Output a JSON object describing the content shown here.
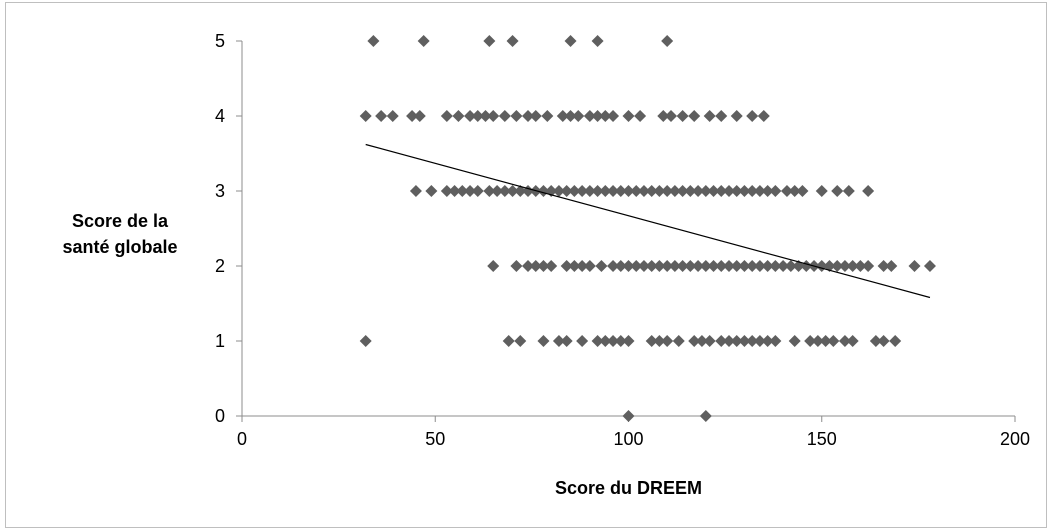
{
  "chart_data": {
    "type": "scatter",
    "title": "",
    "xlabel": "Score du DREEM",
    "ylabel_lines": [
      "Score de la",
      "santé globale"
    ],
    "xlim": [
      0,
      200
    ],
    "ylim": [
      0,
      5
    ],
    "x_ticks": [
      0,
      50,
      100,
      150,
      200
    ],
    "y_ticks": [
      0,
      1,
      2,
      3,
      4,
      5
    ],
    "grid": false,
    "legend": "none",
    "marker_color": "#5f5f5f",
    "trendline_color": "#000000",
    "trendline": {
      "x": [
        32,
        178
      ],
      "y": [
        3.62,
        1.58
      ]
    },
    "series": [
      {
        "points": [
          {
            "x": 34,
            "y": 5
          },
          {
            "x": 47,
            "y": 5
          },
          {
            "x": 64,
            "y": 5
          },
          {
            "x": 70,
            "y": 5
          },
          {
            "x": 85,
            "y": 5
          },
          {
            "x": 92,
            "y": 5
          },
          {
            "x": 110,
            "y": 5
          },
          {
            "x": 32,
            "y": 4
          },
          {
            "x": 36,
            "y": 4
          },
          {
            "x": 39,
            "y": 4
          },
          {
            "x": 44,
            "y": 4
          },
          {
            "x": 46,
            "y": 4
          },
          {
            "x": 53,
            "y": 4
          },
          {
            "x": 56,
            "y": 4
          },
          {
            "x": 59,
            "y": 4
          },
          {
            "x": 61,
            "y": 4
          },
          {
            "x": 63,
            "y": 4
          },
          {
            "x": 65,
            "y": 4
          },
          {
            "x": 68,
            "y": 4
          },
          {
            "x": 71,
            "y": 4
          },
          {
            "x": 74,
            "y": 4
          },
          {
            "x": 76,
            "y": 4
          },
          {
            "x": 79,
            "y": 4
          },
          {
            "x": 83,
            "y": 4
          },
          {
            "x": 85,
            "y": 4
          },
          {
            "x": 87,
            "y": 4
          },
          {
            "x": 90,
            "y": 4
          },
          {
            "x": 92,
            "y": 4
          },
          {
            "x": 94,
            "y": 4
          },
          {
            "x": 96,
            "y": 4
          },
          {
            "x": 100,
            "y": 4
          },
          {
            "x": 103,
            "y": 4
          },
          {
            "x": 109,
            "y": 4
          },
          {
            "x": 111,
            "y": 4
          },
          {
            "x": 114,
            "y": 4
          },
          {
            "x": 117,
            "y": 4
          },
          {
            "x": 121,
            "y": 4
          },
          {
            "x": 124,
            "y": 4
          },
          {
            "x": 128,
            "y": 4
          },
          {
            "x": 132,
            "y": 4
          },
          {
            "x": 135,
            "y": 4
          },
          {
            "x": 45,
            "y": 3
          },
          {
            "x": 49,
            "y": 3
          },
          {
            "x": 53,
            "y": 3
          },
          {
            "x": 55,
            "y": 3
          },
          {
            "x": 57,
            "y": 3
          },
          {
            "x": 59,
            "y": 3
          },
          {
            "x": 61,
            "y": 3
          },
          {
            "x": 64,
            "y": 3
          },
          {
            "x": 66,
            "y": 3
          },
          {
            "x": 68,
            "y": 3
          },
          {
            "x": 70,
            "y": 3
          },
          {
            "x": 72,
            "y": 3
          },
          {
            "x": 74,
            "y": 3
          },
          {
            "x": 76,
            "y": 3
          },
          {
            "x": 78,
            "y": 3
          },
          {
            "x": 80,
            "y": 3
          },
          {
            "x": 82,
            "y": 3
          },
          {
            "x": 84,
            "y": 3
          },
          {
            "x": 86,
            "y": 3
          },
          {
            "x": 88,
            "y": 3
          },
          {
            "x": 90,
            "y": 3
          },
          {
            "x": 92,
            "y": 3
          },
          {
            "x": 94,
            "y": 3
          },
          {
            "x": 96,
            "y": 3
          },
          {
            "x": 98,
            "y": 3
          },
          {
            "x": 100,
            "y": 3
          },
          {
            "x": 102,
            "y": 3
          },
          {
            "x": 104,
            "y": 3
          },
          {
            "x": 106,
            "y": 3
          },
          {
            "x": 108,
            "y": 3
          },
          {
            "x": 110,
            "y": 3
          },
          {
            "x": 112,
            "y": 3
          },
          {
            "x": 114,
            "y": 3
          },
          {
            "x": 116,
            "y": 3
          },
          {
            "x": 118,
            "y": 3
          },
          {
            "x": 120,
            "y": 3
          },
          {
            "x": 122,
            "y": 3
          },
          {
            "x": 124,
            "y": 3
          },
          {
            "x": 126,
            "y": 3
          },
          {
            "x": 128,
            "y": 3
          },
          {
            "x": 130,
            "y": 3
          },
          {
            "x": 132,
            "y": 3
          },
          {
            "x": 134,
            "y": 3
          },
          {
            "x": 136,
            "y": 3
          },
          {
            "x": 138,
            "y": 3
          },
          {
            "x": 141,
            "y": 3
          },
          {
            "x": 143,
            "y": 3
          },
          {
            "x": 145,
            "y": 3
          },
          {
            "x": 150,
            "y": 3
          },
          {
            "x": 154,
            "y": 3
          },
          {
            "x": 157,
            "y": 3
          },
          {
            "x": 162,
            "y": 3
          },
          {
            "x": 65,
            "y": 2
          },
          {
            "x": 71,
            "y": 2
          },
          {
            "x": 74,
            "y": 2
          },
          {
            "x": 76,
            "y": 2
          },
          {
            "x": 78,
            "y": 2
          },
          {
            "x": 80,
            "y": 2
          },
          {
            "x": 84,
            "y": 2
          },
          {
            "x": 86,
            "y": 2
          },
          {
            "x": 88,
            "y": 2
          },
          {
            "x": 90,
            "y": 2
          },
          {
            "x": 93,
            "y": 2
          },
          {
            "x": 96,
            "y": 2
          },
          {
            "x": 98,
            "y": 2
          },
          {
            "x": 100,
            "y": 2
          },
          {
            "x": 102,
            "y": 2
          },
          {
            "x": 104,
            "y": 2
          },
          {
            "x": 106,
            "y": 2
          },
          {
            "x": 108,
            "y": 2
          },
          {
            "x": 110,
            "y": 2
          },
          {
            "x": 112,
            "y": 2
          },
          {
            "x": 114,
            "y": 2
          },
          {
            "x": 116,
            "y": 2
          },
          {
            "x": 118,
            "y": 2
          },
          {
            "x": 120,
            "y": 2
          },
          {
            "x": 122,
            "y": 2
          },
          {
            "x": 124,
            "y": 2
          },
          {
            "x": 126,
            "y": 2
          },
          {
            "x": 128,
            "y": 2
          },
          {
            "x": 130,
            "y": 2
          },
          {
            "x": 132,
            "y": 2
          },
          {
            "x": 134,
            "y": 2
          },
          {
            "x": 136,
            "y": 2
          },
          {
            "x": 138,
            "y": 2
          },
          {
            "x": 140,
            "y": 2
          },
          {
            "x": 142,
            "y": 2
          },
          {
            "x": 144,
            "y": 2
          },
          {
            "x": 146,
            "y": 2
          },
          {
            "x": 148,
            "y": 2
          },
          {
            "x": 150,
            "y": 2
          },
          {
            "x": 152,
            "y": 2
          },
          {
            "x": 154,
            "y": 2
          },
          {
            "x": 156,
            "y": 2
          },
          {
            "x": 158,
            "y": 2
          },
          {
            "x": 160,
            "y": 2
          },
          {
            "x": 162,
            "y": 2
          },
          {
            "x": 166,
            "y": 2
          },
          {
            "x": 168,
            "y": 2
          },
          {
            "x": 174,
            "y": 2
          },
          {
            "x": 178,
            "y": 2
          },
          {
            "x": 32,
            "y": 1
          },
          {
            "x": 69,
            "y": 1
          },
          {
            "x": 72,
            "y": 1
          },
          {
            "x": 78,
            "y": 1
          },
          {
            "x": 82,
            "y": 1
          },
          {
            "x": 84,
            "y": 1
          },
          {
            "x": 88,
            "y": 1
          },
          {
            "x": 92,
            "y": 1
          },
          {
            "x": 94,
            "y": 1
          },
          {
            "x": 96,
            "y": 1
          },
          {
            "x": 98,
            "y": 1
          },
          {
            "x": 100,
            "y": 1
          },
          {
            "x": 106,
            "y": 1
          },
          {
            "x": 108,
            "y": 1
          },
          {
            "x": 110,
            "y": 1
          },
          {
            "x": 113,
            "y": 1
          },
          {
            "x": 117,
            "y": 1
          },
          {
            "x": 119,
            "y": 1
          },
          {
            "x": 121,
            "y": 1
          },
          {
            "x": 124,
            "y": 1
          },
          {
            "x": 126,
            "y": 1
          },
          {
            "x": 128,
            "y": 1
          },
          {
            "x": 130,
            "y": 1
          },
          {
            "x": 132,
            "y": 1
          },
          {
            "x": 134,
            "y": 1
          },
          {
            "x": 136,
            "y": 1
          },
          {
            "x": 138,
            "y": 1
          },
          {
            "x": 143,
            "y": 1
          },
          {
            "x": 147,
            "y": 1
          },
          {
            "x": 149,
            "y": 1
          },
          {
            "x": 151,
            "y": 1
          },
          {
            "x": 153,
            "y": 1
          },
          {
            "x": 156,
            "y": 1
          },
          {
            "x": 158,
            "y": 1
          },
          {
            "x": 164,
            "y": 1
          },
          {
            "x": 166,
            "y": 1
          },
          {
            "x": 169,
            "y": 1
          },
          {
            "x": 100,
            "y": 0
          },
          {
            "x": 120,
            "y": 0
          }
        ]
      }
    ]
  }
}
